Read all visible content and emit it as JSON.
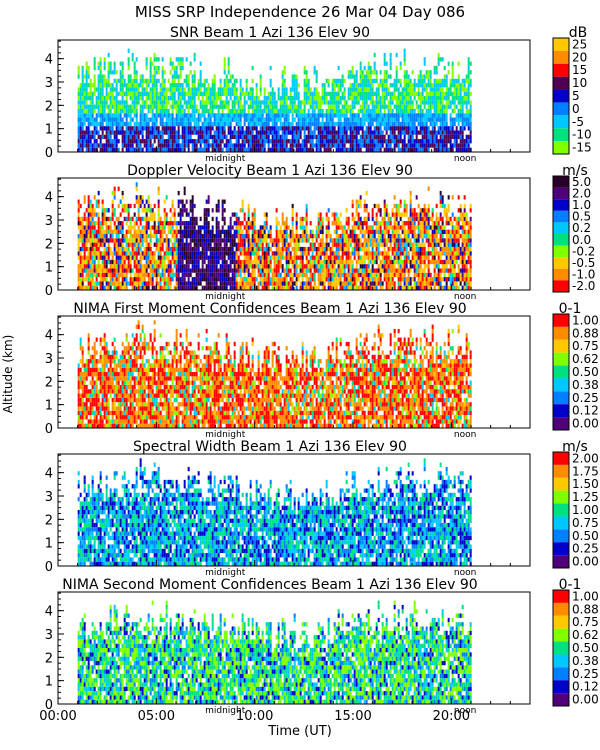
{
  "figure": {
    "title": "MISS SRP Independence  26 Mar 04 Day 086",
    "ylabel": "Altitude (km)",
    "xlabel": "Time (UT)",
    "x_ticks": [
      "00:00",
      "05:00",
      "10:00",
      "15:00",
      "20:00"
    ],
    "marker_midnight": "midnight",
    "marker_noon": "noon"
  },
  "chart_data": [
    {
      "type": "heatmap",
      "title": "SNR Beam 1 Azi 136 Elev 90",
      "unit": "dB",
      "ylim": [
        0,
        4.8
      ],
      "y_ticks": [
        0,
        1,
        2,
        3,
        4
      ],
      "xlim_hours": [
        0,
        24
      ],
      "data_x_range_hours": [
        1.0,
        21.0
      ],
      "scale_labels": [
        "25",
        "20",
        "15",
        "10",
        "5",
        "0",
        "-5",
        "-10",
        "-15"
      ],
      "scale_colors": [
        "#ffc800",
        "#ff8c00",
        "#ff0000",
        "#500050",
        "#0000c8",
        "#0080ff",
        "#00c8ff",
        "#00e080",
        "#80ff00"
      ]
    },
    {
      "type": "heatmap",
      "title": "Doppler Velocity Beam 1 Azi 136 Elev 90",
      "unit": "m/s",
      "ylim": [
        0,
        4.8
      ],
      "y_ticks": [
        0,
        1,
        2,
        3,
        4
      ],
      "xlim_hours": [
        0,
        24
      ],
      "data_x_range_hours": [
        1.0,
        21.0
      ],
      "scale_labels": [
        "5.0",
        "2.0",
        "1.0",
        "0.5",
        "0.2",
        "0.0",
        "-0.2",
        "-0.5",
        "-1.0",
        "-2.0"
      ],
      "scale_colors": [
        "#280028",
        "#500078",
        "#0000c8",
        "#0080ff",
        "#00c8ff",
        "#00e080",
        "#80ff00",
        "#ffc800",
        "#ff8c00",
        "#ff0000"
      ]
    },
    {
      "type": "heatmap",
      "title": "NIMA First Moment Confidences Beam 1 Azi 136 Elev 90",
      "unit": "0-1",
      "ylim": [
        0,
        4.8
      ],
      "y_ticks": [
        0,
        1,
        2,
        3,
        4
      ],
      "xlim_hours": [
        0,
        24
      ],
      "data_x_range_hours": [
        1.0,
        21.0
      ],
      "scale_labels": [
        "1.00",
        "0.88",
        "0.75",
        "0.62",
        "0.50",
        "0.38",
        "0.25",
        "0.12",
        "0.00"
      ],
      "scale_colors": [
        "#ff0000",
        "#ff8c00",
        "#ffc800",
        "#80ff00",
        "#00e080",
        "#00c8ff",
        "#0080ff",
        "#0000c8",
        "#500078"
      ]
    },
    {
      "type": "heatmap",
      "title": "Spectral Width Beam 1 Azi 136 Elev 90",
      "unit": "m/s",
      "ylim": [
        0,
        4.8
      ],
      "y_ticks": [
        0,
        1,
        2,
        3,
        4
      ],
      "xlim_hours": [
        0,
        24
      ],
      "data_x_range_hours": [
        1.0,
        21.0
      ],
      "scale_labels": [
        "2.00",
        "1.75",
        "1.50",
        "1.25",
        "1.00",
        "0.75",
        "0.50",
        "0.25",
        "0.00"
      ],
      "scale_colors": [
        "#ff0000",
        "#ff8c00",
        "#ffc800",
        "#80ff00",
        "#00e080",
        "#00c8ff",
        "#0080ff",
        "#0000c8",
        "#500078"
      ]
    },
    {
      "type": "heatmap",
      "title": "NIMA Second Moment Confidences Beam 1 Azi 136 Elev 90",
      "unit": "0-1",
      "ylim": [
        0,
        4.8
      ],
      "y_ticks": [
        0,
        1,
        2,
        3,
        4
      ],
      "xlim_hours": [
        0,
        24
      ],
      "data_x_range_hours": [
        1.0,
        21.0
      ],
      "scale_labels": [
        "1.00",
        "0.88",
        "0.75",
        "0.62",
        "0.50",
        "0.38",
        "0.25",
        "0.12",
        "0.00"
      ],
      "scale_colors": [
        "#ff0000",
        "#ff8c00",
        "#ffc800",
        "#80ff00",
        "#00e080",
        "#00c8ff",
        "#0080ff",
        "#0000c8",
        "#500078"
      ]
    }
  ]
}
